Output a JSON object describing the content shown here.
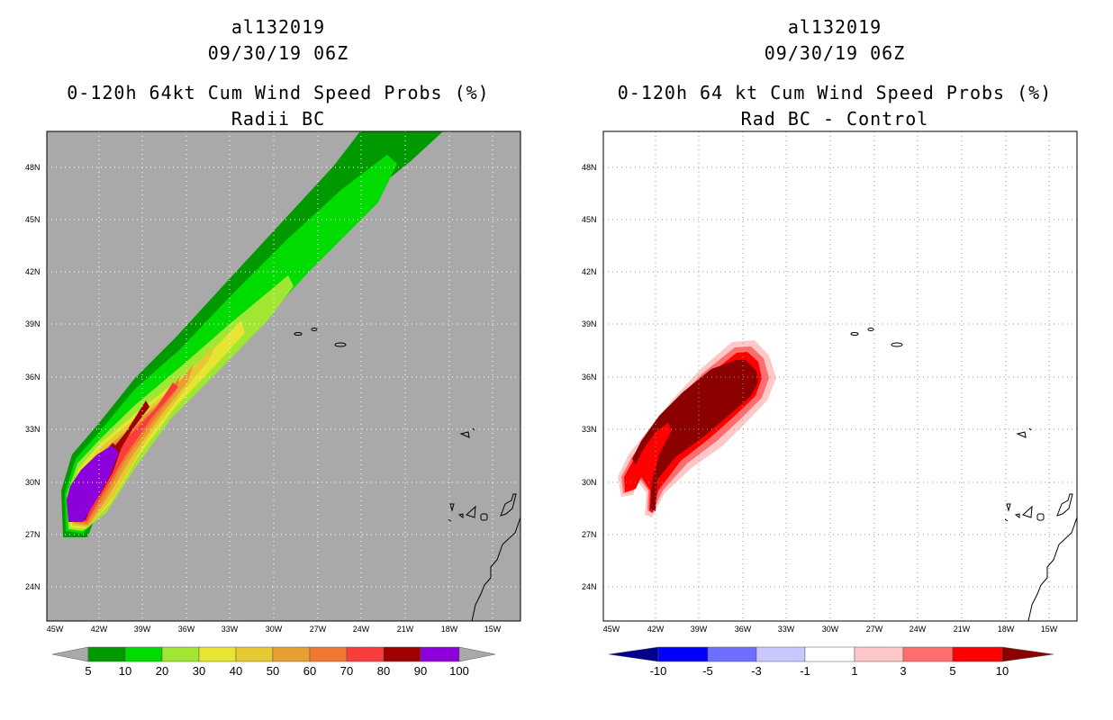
{
  "left": {
    "title_id": "al132019",
    "date": "09/30/19 06Z",
    "product": "0-120h 64kt Cum Wind Speed Probs (%)",
    "subtitle": "Radii BC",
    "lat_labels": [
      "48N",
      "45N",
      "42N",
      "39N",
      "36N",
      "33N",
      "30N",
      "27N",
      "24N"
    ],
    "lon_labels": [
      "45W",
      "42W",
      "39W",
      "36W",
      "33W",
      "30W",
      "27W",
      "24W",
      "21W",
      "18W",
      "15W"
    ],
    "colorbar": {
      "colors": [
        "#a9a9a9",
        "#009a00",
        "#00dc00",
        "#a0e632",
        "#e6e632",
        "#e6c832",
        "#e6a032",
        "#f07832",
        "#fa3c3c",
        "#a00000",
        "#8c00dc",
        "#a9a9a9"
      ],
      "labels": [
        "5",
        "10",
        "20",
        "30",
        "40",
        "50",
        "60",
        "70",
        "80",
        "90",
        "100"
      ]
    }
  },
  "right": {
    "title_id": "al132019",
    "date": "09/30/19 06Z",
    "product": "0-120h 64 kt Cum Wind Speed Probs (%)",
    "subtitle": "Rad BC - Control",
    "lat_labels": [
      "48N",
      "45N",
      "42N",
      "39N",
      "36N",
      "33N",
      "30N",
      "27N",
      "24N"
    ],
    "lon_labels": [
      "45W",
      "42W",
      "39W",
      "36W",
      "33W",
      "30W",
      "27W",
      "24W",
      "21W",
      "18W",
      "15W"
    ],
    "colorbar": {
      "colors": [
        "#00008c",
        "#0000ff",
        "#6e6eff",
        "#c8c8ff",
        "#ffffff",
        "#ffc8c8",
        "#ff6e6e",
        "#ff0000",
        "#8c0000"
      ],
      "labels": [
        "-10",
        "-5",
        "-3",
        "-1",
        "1",
        "3",
        "5",
        "10"
      ]
    }
  }
}
